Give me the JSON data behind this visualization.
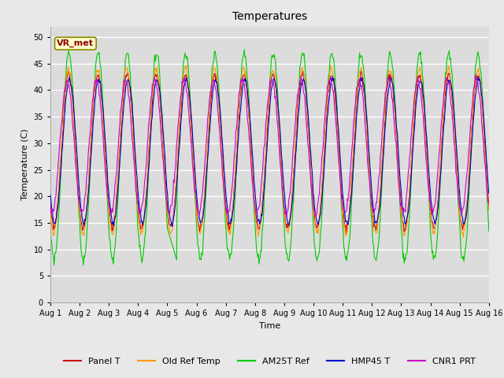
{
  "title": "Temperatures",
  "xlabel": "Time",
  "ylabel": "Temperature (C)",
  "ylim": [
    0,
    52
  ],
  "yticks": [
    0,
    5,
    10,
    15,
    20,
    25,
    30,
    35,
    40,
    45,
    50
  ],
  "annotation_text": "VR_met",
  "series_colors": {
    "Panel T": "#cc0000",
    "Old Ref Temp": "#ff9900",
    "AM25T Ref": "#00cc00",
    "HMP45 T": "#0000cc",
    "CNR1 PRT": "#cc00cc"
  },
  "fig_bg_color": "#e8e8e8",
  "plot_bg_color": "#dcdcdc",
  "grid_color": "#ffffff",
  "title_fontsize": 10,
  "axis_label_fontsize": 8,
  "tick_fontsize": 7,
  "legend_fontsize": 8,
  "linewidth": 0.8
}
